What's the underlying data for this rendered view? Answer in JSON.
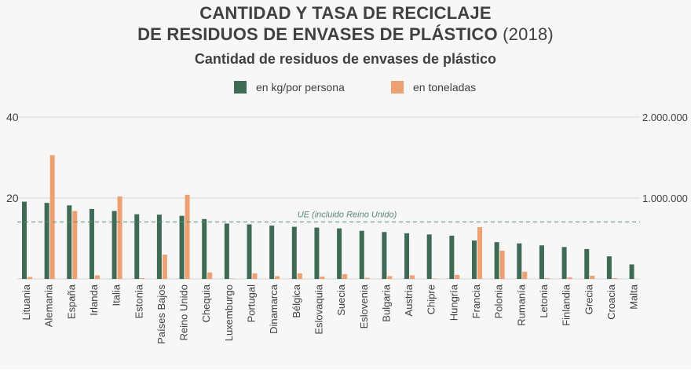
{
  "title": {
    "line1": "CANTIDAD Y TASA DE RECICLAJE",
    "line2_bold": "DE RESIDUOS DE ENVASES DE PLÁSTICO",
    "line2_year": "(2018)"
  },
  "colors": {
    "series_kg": "#3f6b55",
    "series_tons": "#eda071",
    "grid": "#d6d6d6",
    "ref_line": "#5a8a72",
    "text": "#404040"
  },
  "chart_data": {
    "type": "bar",
    "title": "Cantidad de residuos de envases de plástico",
    "categories": [
      "Lituania",
      "Alemania",
      "España",
      "Irlanda",
      "Italia",
      "Estonia",
      "Países Bajos",
      "Reino Unido",
      "Chequia",
      "Luxemburgo",
      "Portugal",
      "Dinamarca",
      "Bélgica",
      "Eslovaquia",
      "Suecia",
      "Eslovenia",
      "Bulgaria",
      "Austria",
      "Chipre",
      "Hungría",
      "Francia",
      "Polonia",
      "Rumanía",
      "Letonia",
      "Finlandia",
      "Grecia",
      "Croacia",
      "Malta"
    ],
    "series": [
      {
        "name": "en kg/por persona",
        "axis": "left",
        "values": [
          19.1,
          18.8,
          18.2,
          17.3,
          16.8,
          16.0,
          15.9,
          15.6,
          14.8,
          13.7,
          13.5,
          13.2,
          12.9,
          12.7,
          12.5,
          11.9,
          11.6,
          11.3,
          11.0,
          10.7,
          9.5,
          9.1,
          8.8,
          8.3,
          7.9,
          7.4,
          5.6,
          3.6
        ]
      },
      {
        "name": "en toneladas",
        "axis": "right",
        "values": [
          25000,
          1530000,
          840000,
          45000,
          1020000,
          10000,
          300000,
          1040000,
          80000,
          5000,
          70000,
          35000,
          70000,
          30000,
          60000,
          15000,
          35000,
          45000,
          5000,
          50000,
          640000,
          350000,
          90000,
          10000,
          20000,
          40000,
          10000,
          0
        ]
      }
    ],
    "y_left": {
      "min": 0,
      "max": 40,
      "ticks": [
        {
          "v": 20,
          "label": "20"
        },
        {
          "v": 40,
          "label": "40"
        }
      ]
    },
    "y_right": {
      "min": 0,
      "max": 2000000,
      "ticks": [
        {
          "v": 1000000,
          "label": "1.000.000"
        },
        {
          "v": 2000000,
          "label": "2.000.000"
        }
      ]
    },
    "reference_line": {
      "value": 14.1,
      "axis": "left",
      "label": "UE (incluido Reino Unido)"
    },
    "grid": true,
    "legend_position": "top"
  }
}
